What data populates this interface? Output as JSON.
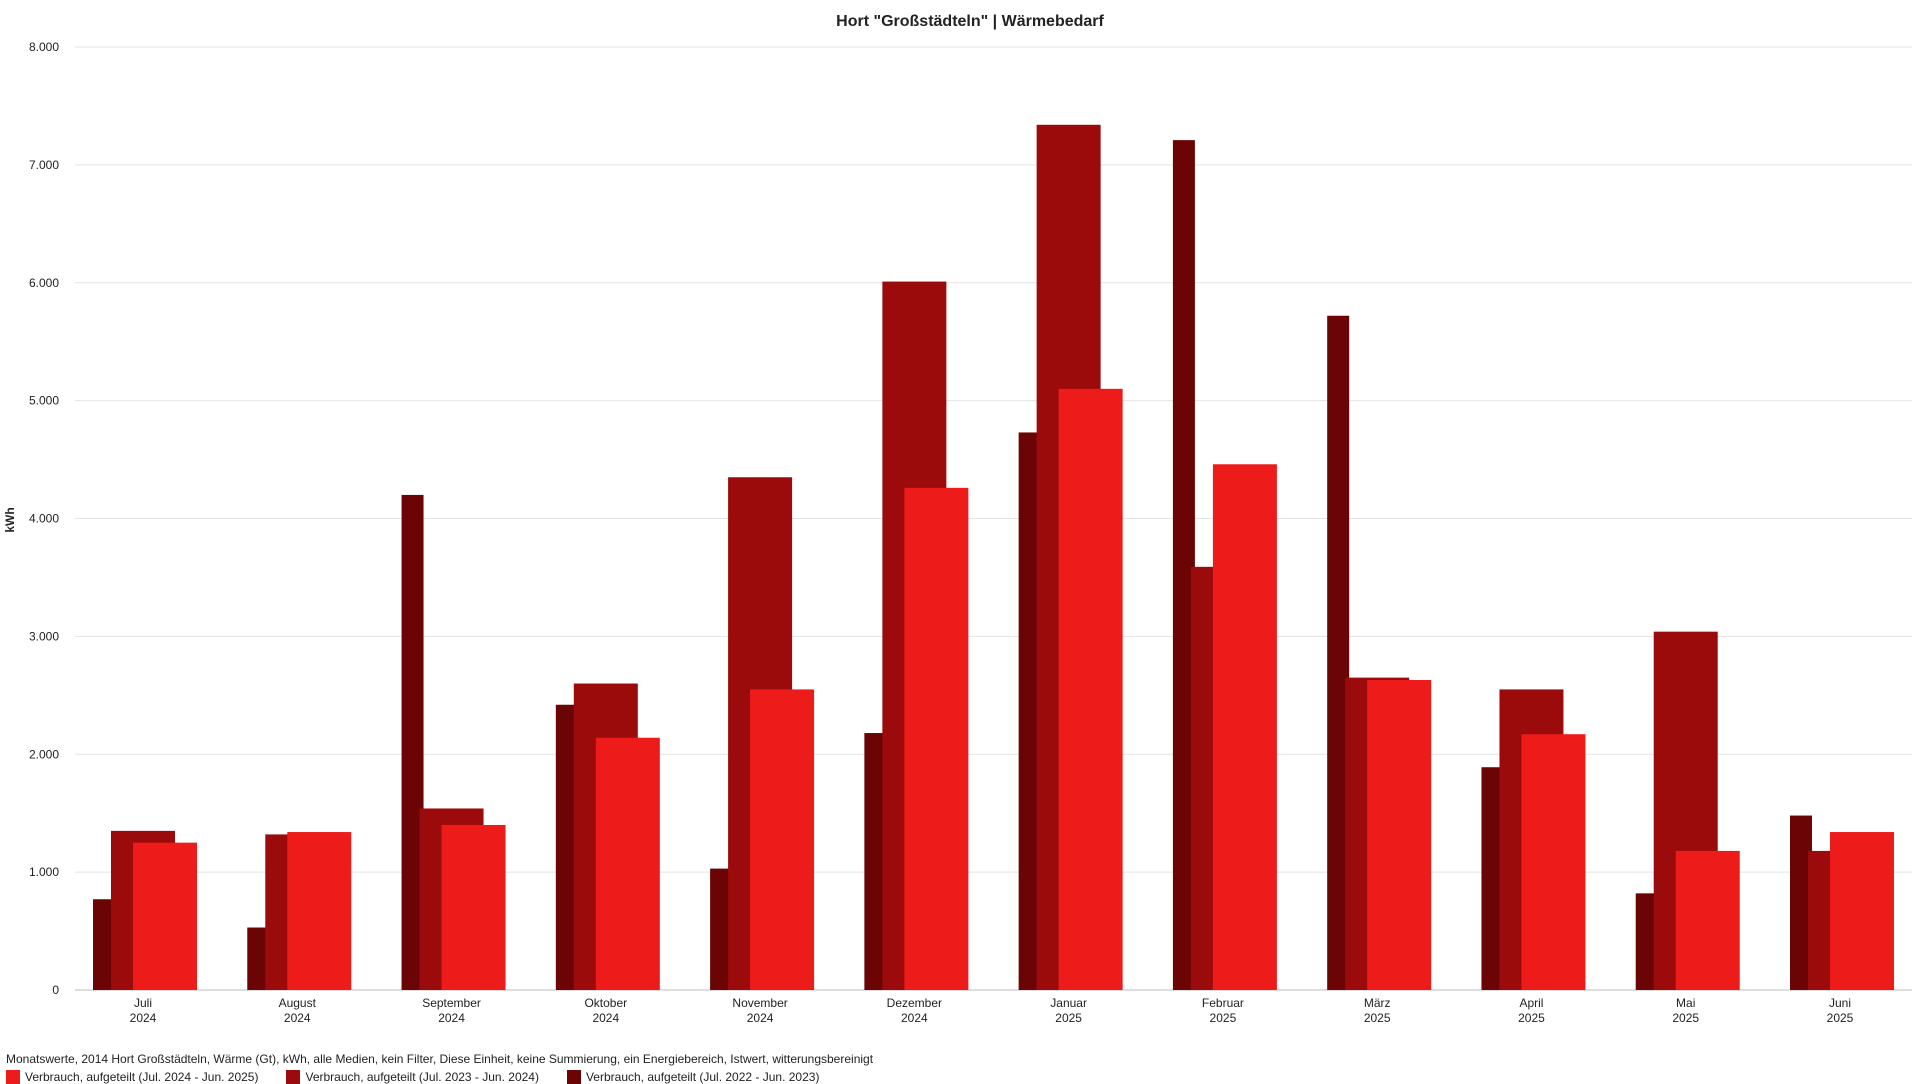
{
  "chart_data": {
    "type": "bar",
    "title": "Hort \"Großstädteln\" | Wärmebedarf",
    "ylabel": "kWh",
    "xlabel": "",
    "ylim": [
      0,
      8000
    ],
    "yticks": [
      "0",
      "1.000",
      "2.000",
      "3.000",
      "4.000",
      "5.000",
      "6.000",
      "7.000",
      "8.000"
    ],
    "yticks_values": [
      0,
      1000,
      2000,
      3000,
      4000,
      5000,
      6000,
      7000,
      8000
    ],
    "grid": true,
    "legend_position": "bottom-left",
    "categories": [
      [
        "Juli",
        "2024"
      ],
      [
        "August",
        "2024"
      ],
      [
        "September",
        "2024"
      ],
      [
        "Oktober",
        "2024"
      ],
      [
        "November",
        "2024"
      ],
      [
        "Dezember",
        "2024"
      ],
      [
        "Januar",
        "2025"
      ],
      [
        "Februar",
        "2025"
      ],
      [
        "März",
        "2025"
      ],
      [
        "April",
        "2025"
      ],
      [
        "Mai",
        "2025"
      ],
      [
        "Juni",
        "2025"
      ]
    ],
    "series": [
      {
        "name": "Verbrauch, aufgeteilt (Jul. 2022 - Jun. 2023)",
        "color": "#6b0505",
        "values": [
          770,
          530,
          4200,
          2420,
          1030,
          2180,
          4730,
          7210,
          5720,
          1890,
          820,
          1480
        ]
      },
      {
        "name": "Verbrauch, aufgeteilt (Jul. 2023 - Jun. 2024)",
        "color": "#9c0b0b",
        "values": [
          1350,
          1320,
          1540,
          2600,
          4350,
          6010,
          7340,
          3590,
          2650,
          2550,
          3040,
          1180
        ]
      },
      {
        "name": "Verbrauch, aufgeteilt (Jul. 2024 - Jun. 2025)",
        "color": "#ee1b1b",
        "values": [
          1250,
          1340,
          1400,
          2140,
          2550,
          4260,
          5100,
          4460,
          2630,
          2170,
          1180,
          1340
        ]
      }
    ],
    "caption": "Monatswerte, 2014 Hort Großstädteln, Wärme (Gt), kWh, alle Medien, kein Filter, Diese Einheit, keine Summierung, ein Energiebereich, Istwert, witterungsbereinigt",
    "legend_order": [
      2,
      1,
      0
    ]
  }
}
